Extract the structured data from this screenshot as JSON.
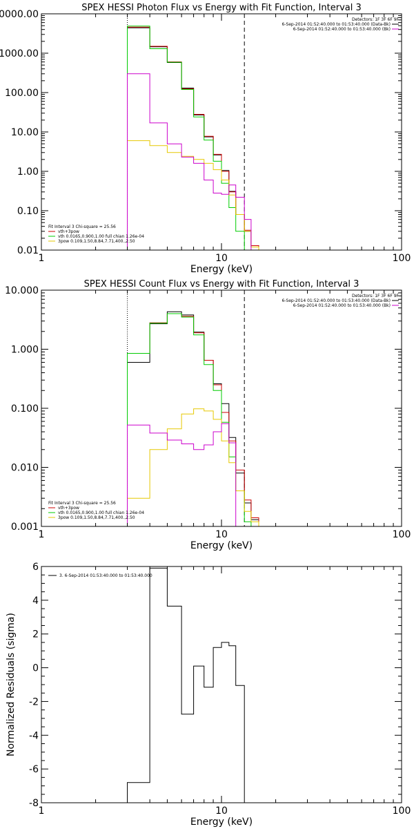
{
  "chart_data": [
    {
      "type": "step",
      "title": "SPEX HESSI Photon Flux vs Energy with Fit Function, Interval 3",
      "xlabel": "Energy (keV)",
      "ylabel": "",
      "xscale": "log",
      "yscale": "log",
      "xlim": [
        1,
        100
      ],
      "ylim": [
        0.01,
        10000
      ],
      "xticks": [
        {
          "v": 1,
          "label": "1"
        },
        {
          "v": 10,
          "label": "10"
        },
        {
          "v": 100,
          "label": "100"
        }
      ],
      "yticks": [
        {
          "v": 0.01,
          "label": "0.01"
        },
        {
          "v": 0.1,
          "label": "0.10"
        },
        {
          "v": 1,
          "label": "1.00"
        },
        {
          "v": 10,
          "label": "10.00"
        },
        {
          "v": 100,
          "label": "100.00"
        },
        {
          "v": 1000,
          "label": "1000.00"
        },
        {
          "v": 10000,
          "label": "10000.00"
        }
      ],
      "edges": [
        3.0,
        4.0,
        5.0,
        6.0,
        7.0,
        8.0,
        9.0,
        10.0,
        11.0,
        12.0,
        13.4,
        14.6,
        16.1
      ],
      "vlines": [
        {
          "x": 3.0,
          "style": "dotted"
        },
        {
          "x": 13.4,
          "style": "dashed"
        }
      ],
      "series": [
        {
          "name": "",
          "color": "#000000",
          "values": [
            4400,
            1450,
            580,
            130,
            27,
            7.5,
            2.6,
            1.05,
            0.31,
            0.08,
            0.03,
            0.012
          ]
        },
        {
          "name": "vth+3pow",
          "color": "#cc0000",
          "values": [
            4600,
            1500,
            600,
            125,
            28,
            7.8,
            2.7,
            1.0,
            0.3,
            0.08,
            0.032,
            0.013
          ]
        },
        {
          "name": "vth 0.0165,0.900,1.00  full chian 1.26e-04",
          "color": "#00cc00",
          "values": [
            4900,
            1300,
            590,
            120,
            24,
            6.2,
            1.8,
            0.5,
            0.12,
            0.03,
            0.01
          ]
        },
        {
          "name": "3pow 0.109,1.50,8.84,7.71,400.,2.50",
          "color": "#e6c800",
          "values": [
            6.0,
            4.5,
            3.0,
            2.4,
            2.0,
            1.6,
            1.1,
            0.6,
            0.25,
            0.08,
            0.03,
            0.012
          ]
        },
        {
          "name": "",
          "color": "#cc00cc",
          "values": [
            300,
            17,
            5.0,
            2.3,
            1.6,
            0.6,
            0.28,
            0.26,
            0.45,
            0.22,
            0.06
          ]
        }
      ],
      "annotations": {
        "fit_text": "Fit Interval 3   Chi-square = 25.56",
        "legend_title": "Detectors: 1F 3F 6F 9F",
        "legend_items": [
          {
            "text": "6-Sep-2014 01:52:40.000 to 01:53:40.000 (Data-Bk)",
            "color": "#000000"
          },
          {
            "text": "6-Sep-2014 01:52:40.000 to 01:53:40.000 (Bk)",
            "color": "#cc00cc"
          }
        ]
      }
    },
    {
      "type": "step",
      "title": "SPEX HESSI Count Flux vs Energy with Fit Function, Interval 3",
      "xlabel": "Energy (keV)",
      "ylabel": "",
      "xscale": "log",
      "yscale": "log",
      "xlim": [
        1,
        100
      ],
      "ylim": [
        0.001,
        10
      ],
      "xticks": [
        {
          "v": 1,
          "label": "1"
        },
        {
          "v": 10,
          "label": "10"
        },
        {
          "v": 100,
          "label": "100"
        }
      ],
      "yticks": [
        {
          "v": 0.001,
          "label": "0.001"
        },
        {
          "v": 0.01,
          "label": "0.010"
        },
        {
          "v": 0.1,
          "label": "0.100"
        },
        {
          "v": 1,
          "label": "1.000"
        },
        {
          "v": 10,
          "label": "10.000"
        }
      ],
      "edges": [
        3.0,
        4.0,
        5.0,
        6.0,
        7.0,
        8.0,
        9.0,
        10.0,
        11.0,
        12.0,
        13.4,
        14.6,
        16.1
      ],
      "vlines": [
        {
          "x": 3.0,
          "style": "dotted"
        },
        {
          "x": 13.4,
          "style": "dashed"
        }
      ],
      "series": [
        {
          "name": "",
          "color": "#000000",
          "values": [
            0.6,
            2.7,
            4.3,
            3.8,
            1.95,
            0.65,
            0.26,
            0.12,
            0.032,
            0.008,
            0.0025,
            0.0013
          ]
        },
        {
          "name": "vth+3pow",
          "color": "#cc0000",
          "values": [
            0.85,
            2.8,
            4.0,
            3.6,
            1.9,
            0.65,
            0.25,
            0.085,
            0.028,
            0.009,
            0.0028,
            0.0014
          ]
        },
        {
          "name": "vth 0.0165,0.900,1.00  full chian 1.26e-04",
          "color": "#00cc00",
          "values": [
            0.85,
            2.75,
            4.0,
            3.5,
            1.75,
            0.55,
            0.2,
            0.058,
            0.015,
            0.004,
            0.0012
          ]
        },
        {
          "name": "3pow 0.109,1.50,8.84,7.71,400.,2.50",
          "color": "#e6c800",
          "values": [
            0.003,
            0.02,
            0.045,
            0.08,
            0.098,
            0.09,
            0.065,
            0.028,
            0.012,
            0.004,
            0.0018,
            0.0012
          ]
        },
        {
          "name": "",
          "color": "#cc00cc",
          "values": [
            0.052,
            0.038,
            0.029,
            0.025,
            0.02,
            0.024,
            0.04,
            0.055,
            0.026
          ]
        }
      ],
      "annotations": {
        "fit_text": "Fit Interval 3   Chi-square = 25.56",
        "legend_title": "Detectors: 1F 3F 6F 9F",
        "legend_items": [
          {
            "text": "6-Sep-2014 01:52:40.000 to 01:53:40.000 (Data-Bk)",
            "color": "#000000"
          },
          {
            "text": "6-Sep-2014 01:52:40.000 to 01:53:40.000 (Bk)",
            "color": "#cc00cc"
          }
        ]
      }
    },
    {
      "type": "step",
      "title": "",
      "xlabel": "Energy (keV)",
      "ylabel": "Normalized Residuals (sigma)",
      "xscale": "log",
      "yscale": "linear",
      "xlim": [
        1,
        100
      ],
      "ylim": [
        -8,
        6
      ],
      "xticks": [
        {
          "v": 1,
          "label": "1"
        },
        {
          "v": 10,
          "label": "10"
        },
        {
          "v": 100,
          "label": "100"
        }
      ],
      "yticks": [
        {
          "v": -8,
          "label": "-8"
        },
        {
          "v": -6,
          "label": "-6"
        },
        {
          "v": -4,
          "label": "-4"
        },
        {
          "v": -2,
          "label": "-2"
        },
        {
          "v": 0,
          "label": "0"
        },
        {
          "v": 2,
          "label": "2"
        },
        {
          "v": 4,
          "label": "4"
        },
        {
          "v": 6,
          "label": "6"
        }
      ],
      "edges": [
        3.0,
        4.0,
        5.0,
        6.0,
        7.0,
        8.0,
        9.0,
        10.0,
        11.0,
        12.0,
        13.4
      ],
      "vlines": [],
      "series": [
        {
          "name": "",
          "color": "#000000",
          "values": [
            -6.8,
            5.9,
            3.65,
            -2.75,
            0.1,
            -1.15,
            1.2,
            1.5,
            1.3,
            -1.05
          ],
          "drop_last": true
        }
      ],
      "annotations": {
        "legend_items": [
          {
            "text": "3.  6-Sep-2014 01:53:40.000 to 01:53:40.000",
            "color": "#000000"
          }
        ]
      }
    }
  ]
}
